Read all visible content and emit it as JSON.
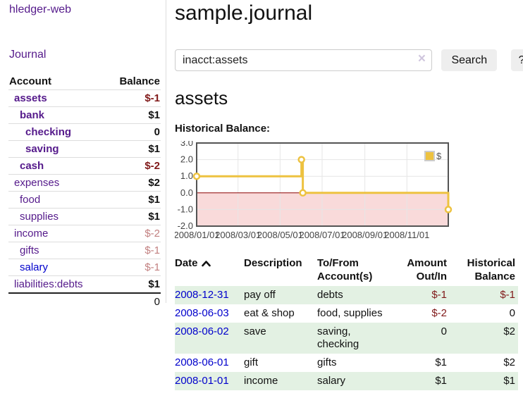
{
  "sidebar": {
    "brand": "hledger-web",
    "nav": {
      "journal": "Journal"
    },
    "accounts_table": {
      "col_account": "Account",
      "col_balance": "Balance",
      "rows": [
        {
          "name": "assets",
          "level": 1,
          "bold": true,
          "link_color": "purple",
          "balance": "$-1",
          "balance_class": "neg"
        },
        {
          "name": "bank",
          "level": 2,
          "bold": true,
          "link_color": "purple",
          "balance": "$1",
          "balance_class": "pos"
        },
        {
          "name": "checking",
          "level": 3,
          "bold": true,
          "link_color": "purple",
          "balance": "0",
          "balance_class": "pos"
        },
        {
          "name": "saving",
          "level": 3,
          "bold": true,
          "link_color": "purple",
          "balance": "$1",
          "balance_class": "pos"
        },
        {
          "name": "cash",
          "level": 2,
          "bold": true,
          "link_color": "purple",
          "balance": "$-2",
          "balance_class": "neg"
        },
        {
          "name": "expenses",
          "level": 1,
          "bold": false,
          "link_color": "purple",
          "balance": "$2",
          "balance_class": "pos"
        },
        {
          "name": "food",
          "level": 2,
          "bold": false,
          "link_color": "purple",
          "balance": "$1",
          "balance_class": "pos"
        },
        {
          "name": "supplies",
          "level": 2,
          "bold": false,
          "link_color": "purple",
          "balance": "$1",
          "balance_class": "pos"
        },
        {
          "name": "income",
          "level": 1,
          "bold": false,
          "link_color": "purple",
          "balance": "$-2",
          "balance_class": "negfade"
        },
        {
          "name": "gifts",
          "level": 2,
          "bold": false,
          "link_color": "purple",
          "balance": "$-1",
          "balance_class": "negfade"
        },
        {
          "name": "salary",
          "level": 2,
          "bold": false,
          "link_color": "blue",
          "balance": "$-1",
          "balance_class": "negfade"
        },
        {
          "name": "liabilities:debts",
          "level": 1,
          "bold": false,
          "link_color": "purple",
          "balance": "$1",
          "balance_class": "pos"
        }
      ],
      "total": "0"
    }
  },
  "main": {
    "title": "sample.journal",
    "search": {
      "value": "inacct:assets",
      "clear_icon": "×",
      "button": "Search",
      "help": "?"
    },
    "account_heading": "assets",
    "chart_heading": "Historical Balance:"
  },
  "register": {
    "headers": {
      "date": "Date",
      "description": "Description",
      "tofrom_line1": "To/From",
      "tofrom_line2": "Account(s)",
      "amount_line1": "Amount",
      "amount_line2": "Out/In",
      "hist_line1": "Historical",
      "hist_line2": "Balance"
    },
    "rows": [
      {
        "date": "2008-12-31",
        "description": "pay off",
        "accounts": "debts",
        "amount": "$-1",
        "amount_class": "neg",
        "balance": "$-1",
        "balance_class": "neg",
        "shaded": true
      },
      {
        "date": "2008-06-03",
        "description": "eat & shop",
        "accounts": "food, supplies",
        "amount": "$-2",
        "amount_class": "neg",
        "balance": "0",
        "balance_class": "pos",
        "shaded": false
      },
      {
        "date": "2008-06-02",
        "description": "save",
        "accounts": "saving, checking",
        "amount": "0",
        "amount_class": "pos",
        "balance": "$2",
        "balance_class": "pos",
        "shaded": true
      },
      {
        "date": "2008-06-01",
        "description": "gift",
        "accounts": "gifts",
        "amount": "$1",
        "amount_class": "pos",
        "balance": "$2",
        "balance_class": "pos",
        "shaded": false
      },
      {
        "date": "2008-01-01",
        "description": "income",
        "accounts": "salary",
        "amount": "$1",
        "amount_class": "pos",
        "balance": "$1",
        "balance_class": "pos",
        "shaded": true
      }
    ]
  },
  "chart_data": {
    "type": "line",
    "style": "steps-with-markers",
    "title": "Historical Balance:",
    "series": [
      {
        "name": "$",
        "color": "#edc240",
        "points": [
          {
            "date": "2008-01-01",
            "day": 0,
            "y": 1
          },
          {
            "date": "2008-06-01",
            "day": 152,
            "y": 2
          },
          {
            "date": "2008-06-03",
            "day": 154,
            "y": 0
          },
          {
            "date": "2008-12-31",
            "day": 365,
            "y": -1
          }
        ]
      }
    ],
    "x_ticks": [
      {
        "label": "2008/01/01",
        "day": 0
      },
      {
        "label": "2008/03/01",
        "day": 60
      },
      {
        "label": "2008/05/01",
        "day": 121
      },
      {
        "label": "2008/07/01",
        "day": 182
      },
      {
        "label": "2008/09/01",
        "day": 244
      },
      {
        "label": "2008/11/01",
        "day": 305
      }
    ],
    "y_ticks": [
      3.0,
      2.0,
      1.0,
      0.0,
      -1.0,
      -2.0
    ],
    "ylim": [
      -2.0,
      3.0
    ],
    "xlim_days": [
      0,
      365
    ],
    "legend": {
      "label": "$",
      "position": "top-right"
    },
    "grid": true,
    "gridline_color": "#e6e6e6",
    "negative_region_color": "#f9dada",
    "zero_line_color": "#8b0000",
    "frame_color": "#545454",
    "axis_text_color": "#444444"
  }
}
